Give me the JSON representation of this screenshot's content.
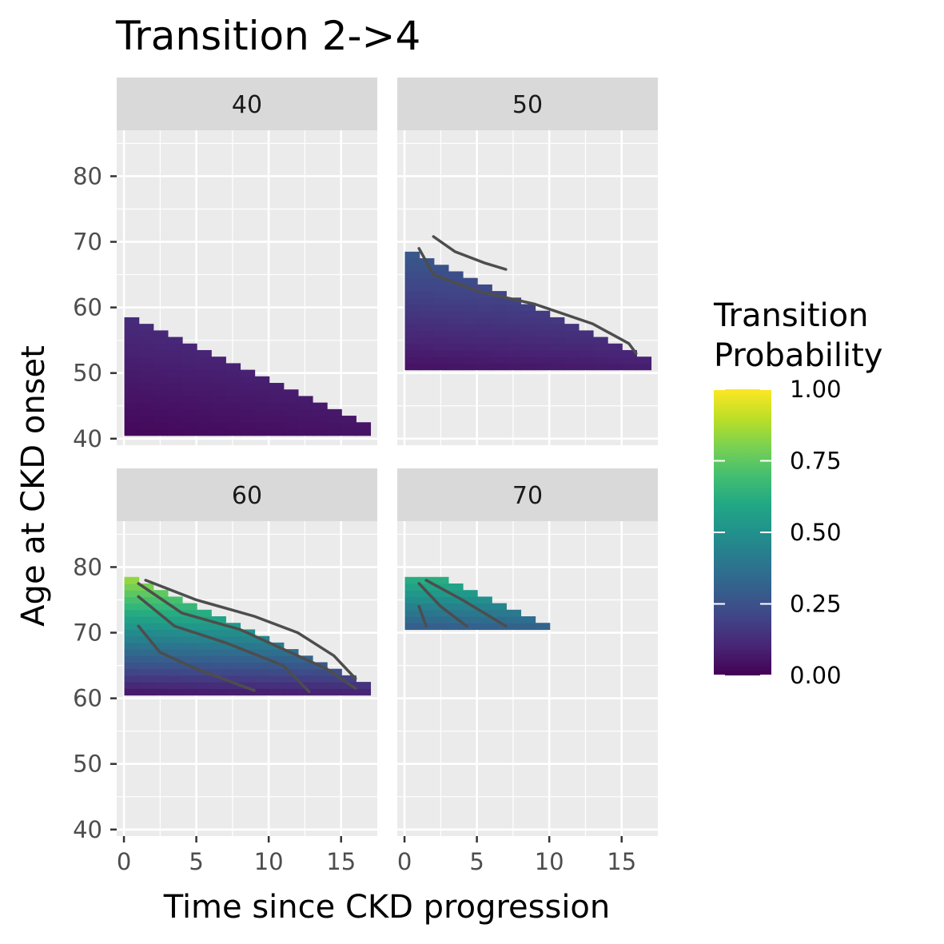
{
  "chart_data": {
    "type": "heatmap",
    "title": "Transition 2->4",
    "xlabel": "Time since CKD progression",
    "ylabel": "Age at CKD onset",
    "xlim": [
      -0.5,
      17.5
    ],
    "ylim": [
      39,
      87
    ],
    "x_ticks": [
      0,
      5,
      10,
      15
    ],
    "y_ticks": [
      40,
      50,
      60,
      70,
      80
    ],
    "grid": true,
    "legend": {
      "title_lines": [
        "Transition",
        "Probability"
      ],
      "ticks": [
        0,
        0.25,
        0.5,
        0.75,
        1
      ],
      "tick_labels": [
        "0.00",
        "0.25",
        "0.50",
        "0.75",
        "1.00"
      ],
      "position": "right",
      "colormap": "viridis"
    },
    "panels": [
      {
        "label": "40",
        "onset_min": 41,
        "onset_max": 61,
        "age_cap": 58,
        "cell_base": 0.02,
        "cell_slope": 0.006,
        "x_max": 16,
        "contours": []
      },
      {
        "label": "50",
        "onset_min": 51,
        "onset_max": 71,
        "age_cap": 68,
        "cell_base": 0.05,
        "cell_slope": 0.013,
        "x_max": 16,
        "contours": [
          [
            [
              1,
              69
            ],
            [
              2,
              65
            ],
            [
              5,
              62.5
            ],
            [
              9,
              60.5
            ],
            [
              13,
              57.5
            ],
            [
              15.5,
              54.5
            ],
            [
              16,
              53
            ]
          ],
          [
            [
              2,
              70.8
            ],
            [
              3.5,
              68.5
            ],
            [
              5.5,
              66.8
            ],
            [
              7,
              65.8
            ]
          ]
        ]
      },
      {
        "label": "60",
        "onset_min": 61,
        "onset_max": 78,
        "age_cap": 78,
        "cell_base": 0.07,
        "cell_slope": 0.045,
        "x_max": 16,
        "contours": [
          [
            [
              1,
              71
            ],
            [
              2.5,
              67
            ],
            [
              5,
              64.5
            ],
            [
              9,
              61.2
            ]
          ],
          [
            [
              1,
              75.5
            ],
            [
              3.5,
              71
            ],
            [
              7,
              68.5
            ],
            [
              11,
              65
            ],
            [
              12.8,
              61
            ]
          ],
          [
            [
              1,
              77.5
            ],
            [
              4,
              73
            ],
            [
              8,
              70.5
            ],
            [
              11.5,
              67
            ],
            [
              14,
              64.5
            ],
            [
              16,
              61.5
            ]
          ],
          [
            [
              1.5,
              78
            ],
            [
              5,
              75
            ],
            [
              9,
              72.5
            ],
            [
              12,
              70
            ],
            [
              14.5,
              66.5
            ],
            [
              16,
              63
            ]
          ]
        ]
      },
      {
        "label": "70",
        "onset_min": 71,
        "onset_max": 78,
        "age_cap": 80,
        "cell_base": 0.3,
        "cell_slope": 0.045,
        "x_max": 9,
        "contours": [
          [
            [
              1,
              74
            ],
            [
              1.5,
              71
            ]
          ],
          [
            [
              1,
              77.5
            ],
            [
              2.5,
              74
            ],
            [
              4.3,
              71
            ]
          ],
          [
            [
              1.5,
              78
            ],
            [
              4,
              75
            ],
            [
              7,
              71
            ]
          ]
        ]
      }
    ]
  }
}
